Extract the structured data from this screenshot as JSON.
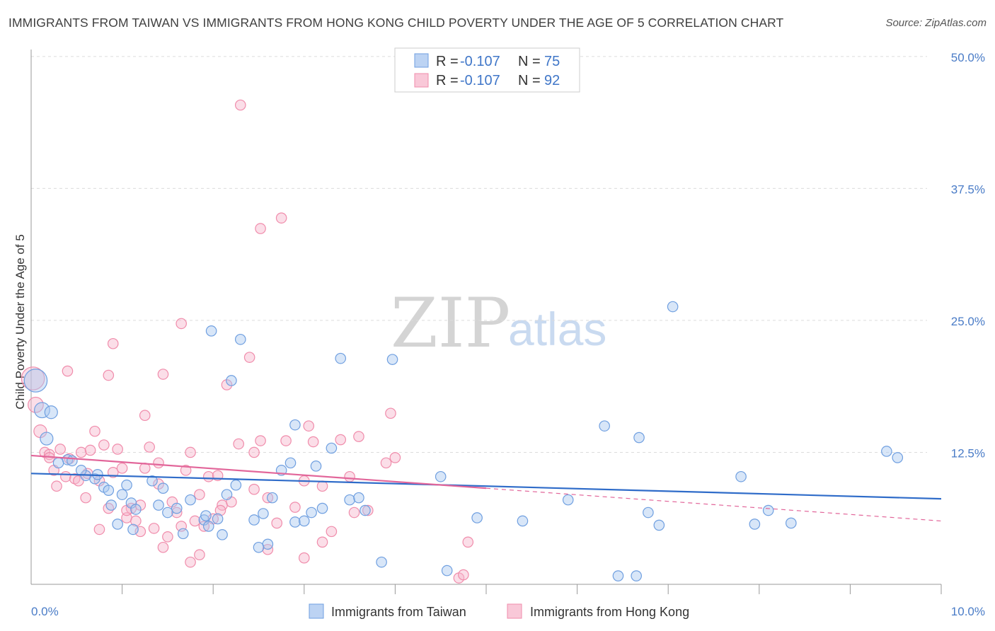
{
  "title": "IMMIGRANTS FROM TAIWAN VS IMMIGRANTS FROM HONG KONG CHILD POVERTY UNDER THE AGE OF 5 CORRELATION CHART",
  "source": "Source: ZipAtlas.com",
  "watermark": {
    "zip": "ZIP",
    "atlas": "atlas"
  },
  "colors": {
    "taiwan": "#6f9fe0",
    "taiwan_line": "#2f6cc9",
    "hongkong": "#f08cab",
    "hongkong_line": "#e2669a",
    "tick_text": "#4a7cc7"
  },
  "chart_data": {
    "type": "scatter",
    "title": "IMMIGRANTS FROM TAIWAN VS IMMIGRANTS FROM HONG KONG CHILD POVERTY UNDER THE AGE OF 5 CORRELATION CHART",
    "xlabel": "",
    "ylabel": "Child Poverty Under the Age of 5",
    "xlim": [
      0,
      10
    ],
    "ylim": [
      0,
      52
    ],
    "x_tick_labels": [
      {
        "value": 0,
        "label": "0.0%"
      },
      {
        "value": 10,
        "label": "10.0%"
      }
    ],
    "y_tick_labels": [
      {
        "value": 12.5,
        "label": "12.5%"
      },
      {
        "value": 25,
        "label": "25.0%"
      },
      {
        "value": 37.5,
        "label": "37.5%"
      },
      {
        "value": 50,
        "label": "50.0%"
      }
    ],
    "legend": [
      {
        "series": "Immigrants from Taiwan",
        "r_label": "R = ",
        "r_value": "-0.107",
        "n_label": "N = ",
        "n_value": "75"
      },
      {
        "series": "Immigrants from Hong Kong",
        "r_label": "R = ",
        "r_value": "-0.107",
        "n_label": "N = ",
        "n_value": "92"
      }
    ],
    "series": [
      {
        "name": "Immigrants from Taiwan",
        "trend": {
          "x0": 0,
          "y0": 10.5,
          "x1": 10,
          "y1": 8.1,
          "dash_to": null
        },
        "points": [
          [
            0.05,
            19.3,
            1.8
          ],
          [
            0.12,
            16.5,
            1.2
          ],
          [
            0.22,
            16.3,
            1.0
          ],
          [
            0.17,
            13.8,
            1.0
          ],
          [
            0.4,
            11.8,
            0.8
          ],
          [
            0.45,
            11.7,
            0.8
          ],
          [
            0.6,
            10.3,
            0.8
          ],
          [
            0.7,
            10.0,
            0.8
          ],
          [
            0.55,
            10.8,
            0.8
          ],
          [
            0.73,
            10.4,
            0.8
          ],
          [
            0.8,
            9.2,
            0.8
          ],
          [
            0.85,
            8.9,
            0.8
          ],
          [
            0.88,
            7.5,
            0.8
          ],
          [
            1.0,
            8.5,
            0.8
          ],
          [
            1.05,
            9.4,
            0.8
          ],
          [
            1.1,
            7.7,
            0.8
          ],
          [
            1.15,
            7.1,
            0.8
          ],
          [
            0.95,
            5.7,
            0.8
          ],
          [
            1.12,
            5.2,
            0.8
          ],
          [
            1.33,
            9.8,
            0.8
          ],
          [
            1.45,
            9.1,
            0.8
          ],
          [
            1.5,
            6.8,
            0.8
          ],
          [
            1.4,
            7.5,
            0.8
          ],
          [
            1.6,
            7.2,
            0.8
          ],
          [
            1.67,
            4.8,
            0.8
          ],
          [
            1.75,
            8.0,
            0.8
          ],
          [
            1.9,
            6.1,
            0.8
          ],
          [
            1.92,
            6.5,
            0.8
          ],
          [
            1.95,
            5.5,
            0.8
          ],
          [
            2.05,
            6.2,
            0.8
          ],
          [
            2.1,
            4.7,
            0.8
          ],
          [
            2.15,
            8.5,
            0.8
          ],
          [
            2.25,
            9.4,
            0.8
          ],
          [
            2.45,
            6.1,
            0.8
          ],
          [
            2.55,
            6.7,
            0.8
          ],
          [
            2.6,
            3.8,
            0.8
          ],
          [
            2.65,
            8.2,
            0.8
          ],
          [
            2.75,
            10.8,
            0.8
          ],
          [
            2.85,
            11.5,
            0.8
          ],
          [
            2.9,
            5.9,
            0.8
          ],
          [
            3.0,
            6.0,
            0.8
          ],
          [
            3.08,
            6.8,
            0.8
          ],
          [
            3.13,
            11.2,
            0.8
          ],
          [
            3.2,
            7.2,
            0.8
          ],
          [
            3.5,
            8.0,
            0.8
          ],
          [
            3.6,
            8.2,
            0.8
          ],
          [
            3.67,
            7.0,
            0.8
          ],
          [
            3.3,
            12.9,
            0.8
          ],
          [
            1.98,
            24.0,
            0.8
          ],
          [
            2.3,
            23.2,
            0.8
          ],
          [
            2.2,
            19.3,
            0.8
          ],
          [
            2.9,
            15.1,
            0.8
          ],
          [
            3.4,
            21.4,
            0.8
          ],
          [
            3.97,
            21.3,
            0.8
          ],
          [
            4.5,
            10.2,
            0.8
          ],
          [
            4.57,
            1.3,
            0.8
          ],
          [
            3.85,
            2.1,
            0.8
          ],
          [
            4.9,
            6.3,
            0.8
          ],
          [
            5.4,
            6.0,
            0.8
          ],
          [
            5.9,
            8.0,
            0.8
          ],
          [
            6.3,
            15.0,
            0.8
          ],
          [
            6.45,
            0.8,
            0.8
          ],
          [
            6.65,
            0.8,
            0.8
          ],
          [
            6.68,
            13.9,
            0.8
          ],
          [
            6.78,
            6.8,
            0.8
          ],
          [
            6.9,
            5.6,
            0.8
          ],
          [
            7.05,
            26.3,
            0.8
          ],
          [
            7.8,
            10.2,
            0.8
          ],
          [
            7.95,
            5.7,
            0.8
          ],
          [
            8.1,
            7.0,
            0.8
          ],
          [
            8.35,
            5.8,
            0.8
          ],
          [
            9.4,
            12.6,
            0.8
          ],
          [
            9.52,
            12.0,
            0.8
          ],
          [
            2.5,
            3.5,
            0.8
          ],
          [
            0.3,
            11.5,
            0.8
          ]
        ]
      },
      {
        "name": "Immigrants from Hong Kong",
        "trend": {
          "x0": 0,
          "y0": 12.2,
          "x1": 5.0,
          "y1": 9.1,
          "dash_to": {
            "x": 10,
            "y": 6.0
          }
        },
        "points": [
          [
            0.02,
            19.5,
            1.8
          ],
          [
            0.05,
            17.0,
            1.2
          ],
          [
            0.1,
            14.5,
            1.0
          ],
          [
            0.15,
            12.5,
            0.8
          ],
          [
            0.2,
            12.3,
            0.8
          ],
          [
            0.25,
            10.8,
            0.8
          ],
          [
            0.28,
            9.3,
            0.8
          ],
          [
            0.32,
            12.8,
            0.8
          ],
          [
            0.38,
            10.2,
            0.8
          ],
          [
            0.42,
            11.9,
            0.8
          ],
          [
            0.48,
            10.0,
            0.8
          ],
          [
            0.52,
            9.8,
            0.8
          ],
          [
            0.55,
            12.5,
            0.8
          ],
          [
            0.6,
            8.2,
            0.8
          ],
          [
            0.65,
            12.7,
            0.8
          ],
          [
            0.7,
            14.5,
            0.8
          ],
          [
            0.75,
            9.8,
            0.8
          ],
          [
            0.8,
            13.2,
            0.8
          ],
          [
            0.85,
            7.2,
            0.8
          ],
          [
            0.9,
            10.6,
            0.8
          ],
          [
            0.95,
            12.8,
            0.8
          ],
          [
            1.0,
            11.0,
            0.8
          ],
          [
            1.05,
            6.3,
            0.8
          ],
          [
            1.1,
            7.2,
            0.8
          ],
          [
            1.15,
            6.0,
            0.8
          ],
          [
            1.2,
            7.5,
            0.8
          ],
          [
            1.25,
            11.0,
            0.8
          ],
          [
            1.3,
            13.0,
            0.8
          ],
          [
            1.35,
            5.3,
            0.8
          ],
          [
            1.4,
            9.5,
            0.8
          ],
          [
            1.45,
            3.5,
            0.8
          ],
          [
            1.5,
            4.5,
            0.8
          ],
          [
            1.55,
            7.8,
            0.8
          ],
          [
            1.6,
            6.8,
            0.8
          ],
          [
            1.65,
            5.5,
            0.8
          ],
          [
            1.7,
            10.8,
            0.8
          ],
          [
            1.75,
            12.5,
            0.8
          ],
          [
            1.8,
            6.0,
            0.8
          ],
          [
            1.85,
            2.8,
            0.8
          ],
          [
            1.9,
            5.5,
            0.8
          ],
          [
            1.95,
            10.2,
            0.8
          ],
          [
            2.0,
            6.2,
            0.8
          ],
          [
            2.05,
            10.3,
            0.8
          ],
          [
            2.1,
            7.5,
            0.8
          ],
          [
            2.15,
            18.9,
            0.8
          ],
          [
            2.2,
            7.8,
            0.8
          ],
          [
            2.28,
            13.3,
            0.8
          ],
          [
            2.4,
            21.5,
            0.8
          ],
          [
            2.45,
            12.5,
            0.8
          ],
          [
            2.52,
            13.6,
            0.8
          ],
          [
            2.6,
            8.2,
            0.8
          ],
          [
            2.7,
            5.8,
            0.8
          ],
          [
            2.8,
            13.6,
            0.8
          ],
          [
            2.9,
            7.3,
            0.8
          ],
          [
            3.0,
            2.5,
            0.8
          ],
          [
            3.05,
            15.0,
            0.8
          ],
          [
            3.1,
            13.5,
            0.8
          ],
          [
            3.2,
            9.3,
            0.8
          ],
          [
            3.3,
            5.0,
            0.8
          ],
          [
            3.4,
            13.7,
            0.8
          ],
          [
            3.5,
            10.2,
            0.8
          ],
          [
            3.6,
            14.0,
            0.8
          ],
          [
            3.7,
            7.0,
            0.8
          ],
          [
            3.9,
            11.5,
            0.8
          ],
          [
            3.95,
            16.2,
            0.8
          ],
          [
            4.0,
            12.0,
            0.8
          ],
          [
            4.8,
            4.0,
            0.8
          ],
          [
            1.25,
            16.0,
            0.8
          ],
          [
            0.85,
            19.8,
            0.8
          ],
          [
            0.4,
            20.2,
            0.8
          ],
          [
            0.9,
            22.8,
            0.8
          ],
          [
            1.45,
            19.9,
            0.8
          ],
          [
            1.65,
            24.7,
            0.8
          ],
          [
            2.52,
            33.7,
            0.8
          ],
          [
            2.75,
            34.7,
            0.8
          ],
          [
            2.3,
            45.4,
            0.8
          ],
          [
            4.7,
            0.6,
            0.8
          ],
          [
            4.75,
            0.9,
            0.8
          ],
          [
            2.6,
            3.3,
            0.8
          ],
          [
            1.75,
            2.1,
            0.8
          ],
          [
            3.2,
            4.0,
            0.8
          ],
          [
            1.2,
            5.0,
            0.8
          ],
          [
            0.75,
            5.2,
            0.8
          ],
          [
            1.05,
            7.0,
            0.8
          ],
          [
            1.85,
            8.5,
            0.8
          ],
          [
            2.45,
            9.0,
            0.8
          ],
          [
            0.62,
            10.5,
            0.8
          ],
          [
            0.2,
            12.0,
            0.8
          ],
          [
            3.55,
            6.8,
            0.8
          ],
          [
            1.4,
            11.5,
            0.8
          ],
          [
            2.08,
            7.0,
            0.8
          ],
          [
            3.0,
            9.8,
            0.8
          ]
        ]
      }
    ]
  }
}
